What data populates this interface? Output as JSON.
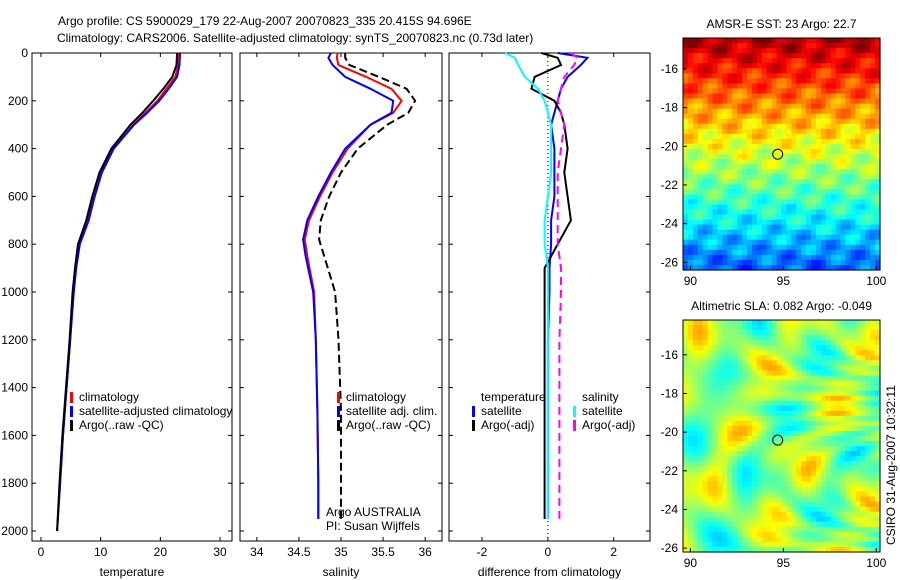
{
  "title_line1": "Argo profile: CS 5900029_179 22-Aug-2007 20070823_335 20.415S 94.696E",
  "title_line2": "Climatology: CARS2006. Satellite-adjusted climatology: synTS_20070823.nc (0.73d later)",
  "side_label": "CSIRO 31-Aug-2007 10:32:11",
  "chart_data": [
    {
      "type": "line",
      "id": "temp",
      "xlabel": "temperature",
      "ylabel": "",
      "xlim": [
        -1.5,
        32
      ],
      "ylim": [
        2000,
        0
      ],
      "xticks": [
        0,
        10,
        20,
        30
      ],
      "yticks": [
        0,
        200,
        400,
        600,
        800,
        1000,
        1200,
        1400,
        1600,
        1800,
        2000
      ],
      "legend": [
        "climatology",
        "satellite-adjusted climatology",
        "Argo(..raw -QC)"
      ],
      "depth": [
        0,
        50,
        100,
        150,
        200,
        250,
        300,
        400,
        500,
        600,
        700,
        800,
        900,
        1000,
        1200,
        1400,
        1600,
        1800,
        2000
      ],
      "series": [
        {
          "name": "climatology",
          "color": "#ff0000",
          "dash": "",
          "values": [
            23,
            23,
            22.5,
            21,
            19.5,
            17.5,
            15.5,
            12,
            10,
            8.8,
            7.8,
            6.4,
            5.8,
            5.4,
            4.9,
            4.3,
            3.7,
            3.2,
            2.7
          ]
        },
        {
          "name": "satellite-adjusted climatology",
          "color": "#0000ff",
          "dash": "",
          "values": [
            23.3,
            23.2,
            22.8,
            21.4,
            19.8,
            17.8,
            15.6,
            12.2,
            10.2,
            9,
            8,
            6.5,
            5.9,
            5.5,
            4.9,
            4.3,
            3.7,
            3.2,
            2.7
          ]
        },
        {
          "name": "Argo(..raw -QC)",
          "color": "#000000",
          "dash": "",
          "values": [
            22.8,
            22.7,
            22,
            20.5,
            18.8,
            17,
            15,
            11.8,
            9.8,
            8.6,
            7.6,
            6.2,
            5.7,
            5.3,
            4.8,
            4.2,
            3.6,
            3.1,
            2.7
          ]
        }
      ]
    },
    {
      "type": "line",
      "id": "sal",
      "xlabel": "salinity",
      "xlim": [
        33.8,
        36.2
      ],
      "ylim": [
        2000,
        0
      ],
      "xticks": [
        34,
        34.5,
        35,
        35.5,
        36
      ],
      "legend": [
        "climatology",
        "satellite adj. clim.",
        "Argo(..raw -QC)"
      ],
      "annotation": [
        "Argo AUSTRALIA",
        "PI: Susan Wijffels"
      ],
      "depth": [
        0,
        20,
        50,
        100,
        150,
        200,
        250,
        300,
        400,
        500,
        600,
        700,
        780,
        850,
        1000,
        1200,
        1500,
        1800,
        1950
      ],
      "series": [
        {
          "name": "climatology",
          "color": "#ff0000",
          "dash": "",
          "values": [
            34.96,
            34.95,
            34.97,
            35.3,
            35.6,
            35.72,
            35.62,
            35.35,
            35.08,
            34.9,
            34.75,
            34.62,
            34.57,
            34.6,
            34.68,
            34.7,
            34.72,
            34.73,
            34.73
          ]
        },
        {
          "name": "satellite adj. clim.",
          "color": "#0000ff",
          "dash": "",
          "values": [
            34.88,
            34.85,
            34.9,
            35.05,
            35.35,
            35.62,
            35.6,
            35.35,
            35.05,
            34.88,
            34.73,
            34.6,
            34.55,
            34.58,
            34.67,
            34.7,
            34.72,
            34.73,
            34.73
          ]
        },
        {
          "name": "Argo(..raw -QC)",
          "color": "#000000",
          "dash": "8,4",
          "values": [
            35.05,
            35.05,
            35.1,
            35.45,
            35.78,
            35.88,
            35.8,
            35.55,
            35.2,
            35.0,
            34.86,
            34.76,
            34.74,
            34.8,
            34.93,
            34.97,
            35.0,
            35.0,
            35.0
          ]
        }
      ]
    },
    {
      "type": "line",
      "id": "diff",
      "xlabel": "difference from climatology",
      "xlim": [
        -3,
        3.1
      ],
      "ylim": [
        2000,
        0
      ],
      "xticks": [
        -2,
        0,
        2
      ],
      "legend_temperature": [
        "temperature",
        "satellite",
        "Argo(-adj)"
      ],
      "legend_salinity": [
        "salinity",
        "satellite",
        "Argo(-adj)"
      ],
      "depth": [
        0,
        20,
        50,
        100,
        150,
        200,
        250,
        300,
        400,
        500,
        600,
        700,
        800,
        900,
        1000,
        1200,
        1500,
        1800,
        1950
      ],
      "series": [
        {
          "name": "temperature satellite",
          "color": "#0000ff",
          "dash": "",
          "values": [
            0.3,
            1.2,
            1.0,
            0.6,
            0.4,
            0.3,
            0.2,
            0.1,
            0.2,
            0.2,
            0.2,
            0.1,
            0.1,
            0.05,
            0.05,
            0,
            0,
            0,
            0
          ]
        },
        {
          "name": "temperature Argo(-adj)",
          "color": "#000000",
          "dash": "",
          "values": [
            -0.2,
            0.3,
            0.4,
            -0.4,
            -0.5,
            0.2,
            0.4,
            0.5,
            0.6,
            0.5,
            0.6,
            0.7,
            0.3,
            -0.1,
            -0.1,
            -0.1,
            -0.1,
            -0.1,
            -0.1
          ]
        },
        {
          "name": "salinity satellite",
          "color": "#00ffff",
          "dash": "",
          "values": [
            -1.3,
            -1.0,
            -0.9,
            -0.7,
            -0.3,
            -0.1,
            0,
            0.1,
            0.1,
            0.1,
            0.0,
            -0.1,
            -0.1,
            0,
            0,
            0,
            0,
            0,
            0
          ]
        },
        {
          "name": "salinity Argo(-adj)",
          "color": "#ff00ff",
          "dash": "8,5",
          "values": [
            0.7,
            0.9,
            0.8,
            0.5,
            0.4,
            0.3,
            0.4,
            0.5,
            0.4,
            0.3,
            0.3,
            0.3,
            0.3,
            0.4,
            0.4,
            0.35,
            0.35,
            0.35,
            0.35
          ]
        }
      ]
    },
    {
      "type": "heatmap",
      "id": "sst",
      "title": "AMSR-E SST: 23 Argo: 22.7",
      "xlim": [
        89.6,
        100.2
      ],
      "ylim": [
        -26.4,
        -14.4
      ],
      "xticks": [
        90,
        95,
        100
      ],
      "yticks": [
        -16,
        -18,
        -20,
        -22,
        -24,
        -26
      ],
      "marker": {
        "lon": 94.696,
        "lat": -20.415
      }
    },
    {
      "type": "heatmap",
      "id": "sla",
      "title": "Altimetric SLA: 0.082 Argo: -0.049",
      "xlim": [
        89.6,
        100.2
      ],
      "ylim": [
        -26.2,
        -14.2
      ],
      "xticks": [
        90,
        95,
        100
      ],
      "yticks": [
        -16,
        -18,
        -20,
        -22,
        -24,
        -26
      ],
      "marker": {
        "lon": 94.696,
        "lat": -20.415
      }
    }
  ]
}
